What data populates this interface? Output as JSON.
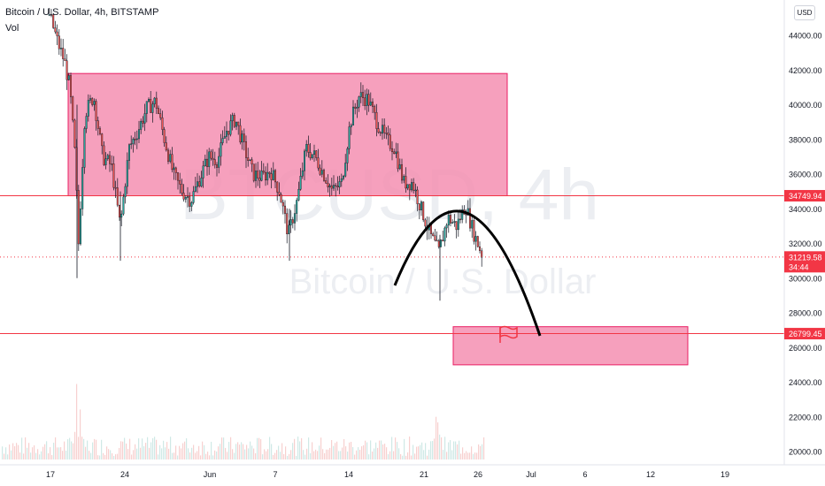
{
  "header": {
    "symbol_line": "Bitcoin / U.S. Dollar, 4h, BITSTAMP",
    "indicator": "Vol"
  },
  "currency_button": "USD",
  "watermark": {
    "ticker": "BTCUSD, 4h",
    "name": "Bitcoin / U.S. Dollar"
  },
  "colors": {
    "zone_fill": "#f48fb1",
    "zone_stroke": "#e91e63",
    "level_line": "#f23645",
    "candle_up": "#26a69a",
    "candle_down": "#ef5350",
    "curve": "#000000",
    "flag": "#f23645"
  },
  "chart_data": {
    "type": "candlestick",
    "y_axis": {
      "min": 19000,
      "max": 46000,
      "ticks": [
        20000,
        22000,
        24000,
        26000,
        28000,
        30000,
        32000,
        34000,
        36000,
        38000,
        40000,
        42000,
        44000
      ]
    },
    "x_ticks": [
      "17",
      "24",
      "Jun",
      "7",
      "14",
      "21",
      "26",
      "Jul",
      "6",
      "12",
      "19"
    ],
    "price_labels": [
      {
        "label": "34749.94",
        "value": 34749.94
      },
      {
        "label": "31219.58",
        "value": 31219.58,
        "sub": "34:44"
      },
      {
        "label": "26799.45",
        "value": 26799.45
      }
    ],
    "horizontal_levels": [
      34749.94,
      26799.45
    ],
    "zones": [
      {
        "name": "range",
        "top": 41800,
        "bottom": 34750,
        "from": "May 17",
        "to": "Jun 28"
      },
      {
        "name": "target",
        "top": 27200,
        "bottom": 25000,
        "from": "Jun 23",
        "to": "Jul 15"
      }
    ],
    "current_price": 31219.58,
    "timeframe": "4h"
  },
  "axis_tick_labels": [
    "44000.00",
    "42000.00",
    "40000.00",
    "38000.00",
    "36000.00",
    "34000.00",
    "32000.00",
    "30000.00",
    "28000.00",
    "26000.00",
    "24000.00",
    "22000.00",
    "20000.00"
  ]
}
